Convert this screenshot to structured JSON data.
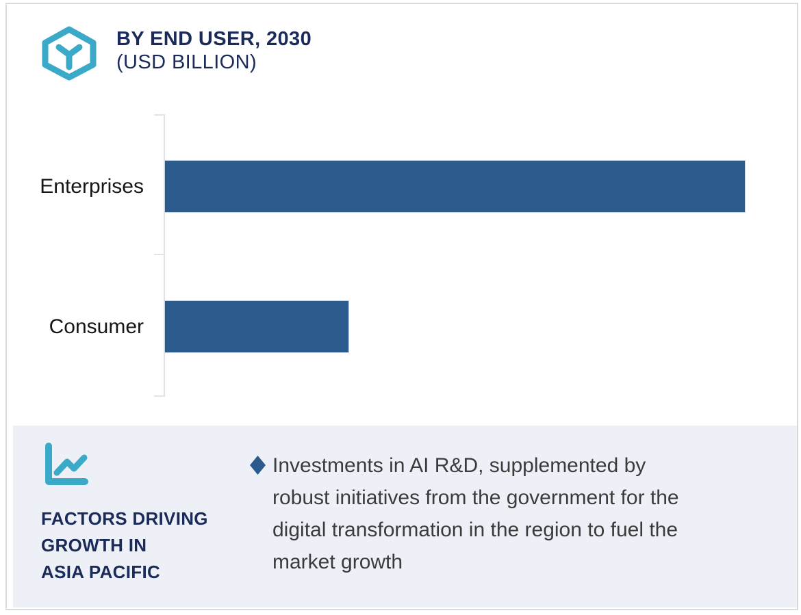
{
  "header": {
    "icon": "cube-hexagon-icon",
    "title_line1": "BY END USER, 2030",
    "title_line2": "(USD BILLION)"
  },
  "chart_data": {
    "type": "bar",
    "orientation": "horizontal",
    "title": "BY END USER, 2030",
    "subtitle": "(USD BILLION)",
    "categories": [
      "Enterprises",
      "Consumer"
    ],
    "values_pct_of_longest_bar": [
      100,
      31.6
    ],
    "value_axis": "no numeric axis or data labels shown; bar lengths estimated from pixels",
    "gridlines": false,
    "legend": false,
    "bar_color": "#2B5A8C"
  },
  "factors_panel": {
    "icon": "line-chart-icon",
    "title_lines": [
      "FACTORS DRIVING",
      "GROWTH IN",
      "ASIA PACIFIC"
    ],
    "bullet_marker": "diamond",
    "bullet_lines": [
      "Investments in AI R&D, supplemented by",
      "robust initiatives from the government for the",
      "digital transformation in the region to fuel the",
      "market growth"
    ],
    "bullet_text": "Investments in AI R&D, supplemented by robust initiatives from the government for the digital transformation in the region to fuel the market growth"
  },
  "colors": {
    "bar_blue": "#2B5A8C",
    "navy_text": "#1B2B59",
    "teal_accent": "#3BA9C8",
    "panel_background": "#EDF0F6",
    "body_text": "#3B3B3B",
    "axis_gray": "#E3E3E6",
    "page_border": "#D9DADD"
  }
}
